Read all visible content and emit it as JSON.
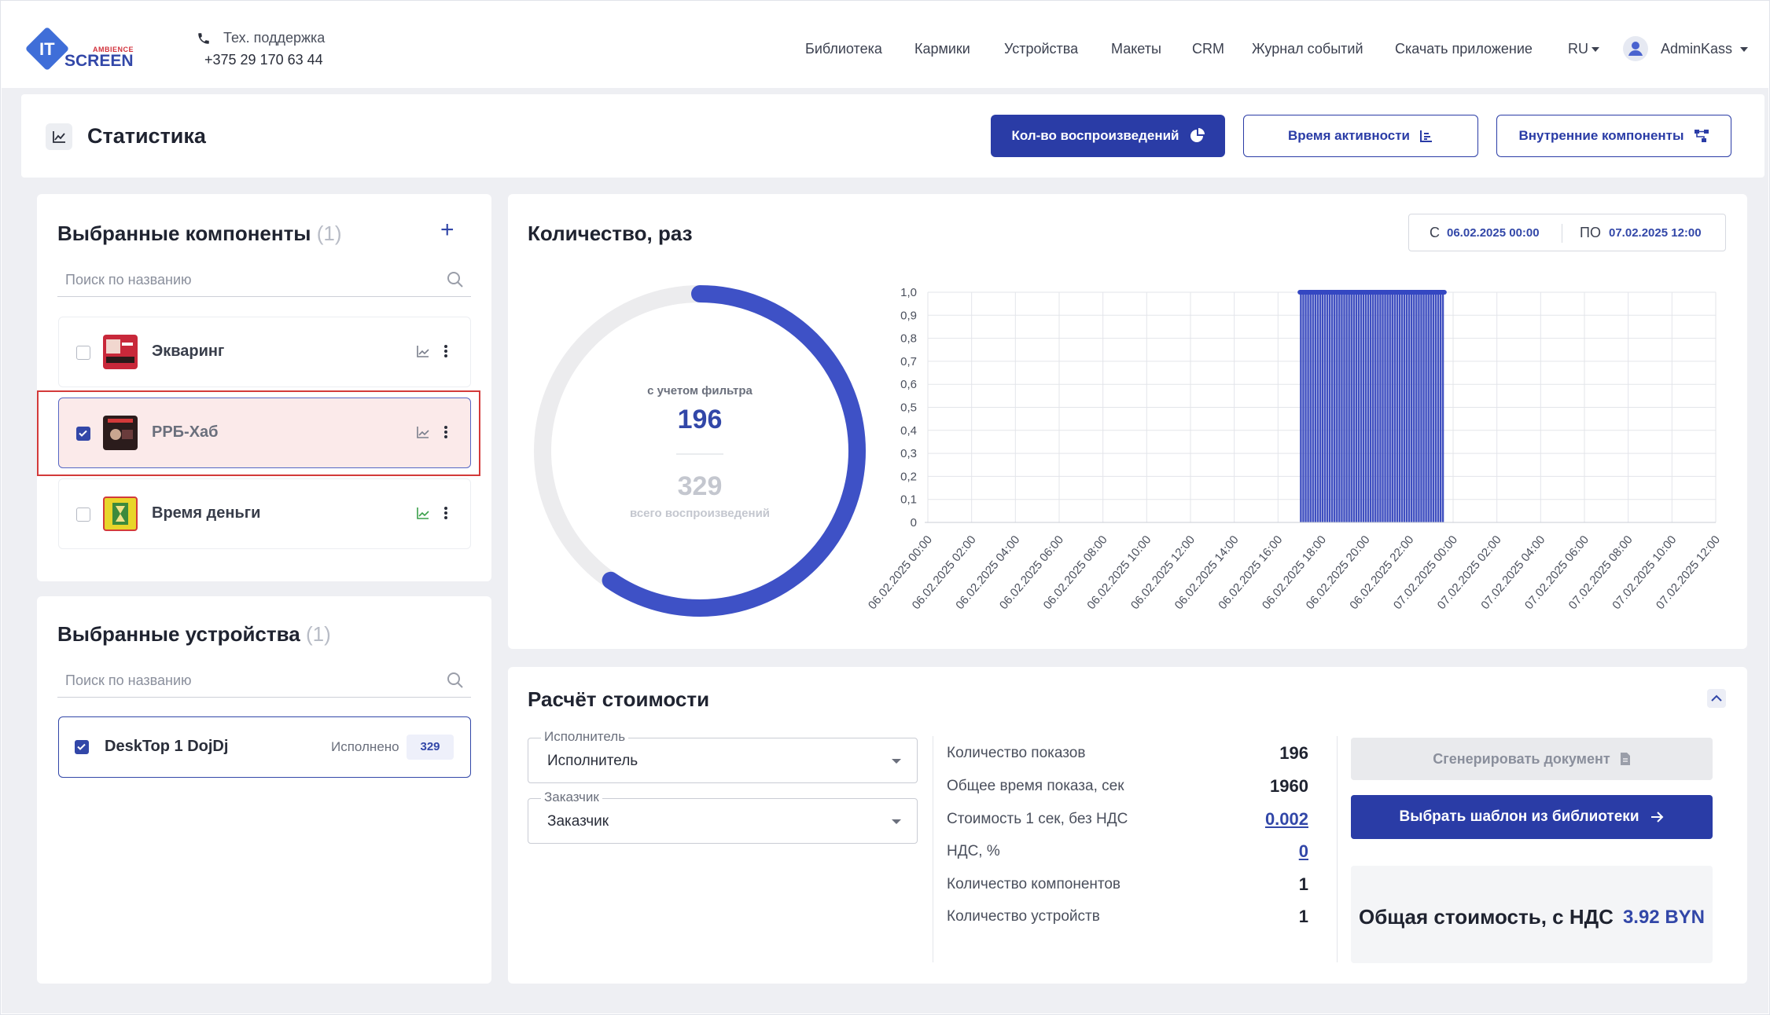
{
  "brand": {
    "logo_it": "IT",
    "logo_ambience": "AMBIENCE",
    "logo_screen": "SCREEN"
  },
  "support": {
    "label": "Тех. поддержка",
    "phone": "+375 29 170 63 44"
  },
  "nav": {
    "items": [
      "Библиотека",
      "Кармики",
      "Устройства",
      "Макеты",
      "CRM",
      "Журнал событий",
      "Скачать приложение"
    ],
    "lang": "RU",
    "user": "AdminKass"
  },
  "header": {
    "title": "Статистика",
    "buttons": {
      "plays": "Кол-во воспроизведений",
      "activity": "Время активности",
      "internal": "Внутренние компоненты"
    }
  },
  "components": {
    "title": "Выбранные компоненты",
    "count": "(1)",
    "search_placeholder": "Поиск по названию",
    "items": [
      {
        "name": "Экваринг",
        "checked": false
      },
      {
        "name": "РРБ-Хаб",
        "checked": true
      },
      {
        "name": "Время деньги",
        "checked": false
      }
    ]
  },
  "devices": {
    "title": "Выбранные устройства",
    "count": "(1)",
    "search_placeholder": "Поиск по названию",
    "items": [
      {
        "name": "DeskTop 1 DojDj",
        "status": "Исполнено",
        "count": "329",
        "checked": true
      }
    ]
  },
  "quantity": {
    "title": "Количество, раз",
    "date_from_label": "С",
    "date_from": "06.02.2025 00:00",
    "date_to_label": "ПО",
    "date_to": "07.02.2025 12:00",
    "filtered_label": "с учетом фильтра",
    "filtered_value": "196",
    "total_value": "329",
    "total_label": "всего воспроизведений",
    "donut_fraction": 0.5957
  },
  "chart_data": {
    "type": "bar",
    "title": "",
    "xlabel": "",
    "ylabel": "",
    "ylim": [
      0,
      1
    ],
    "yticks": [
      "0",
      "0,1",
      "0,2",
      "0,3",
      "0,4",
      "0,5",
      "0,6",
      "0,7",
      "0,8",
      "0,9",
      "1,0"
    ],
    "categories": [
      "06.02.2025 00:00",
      "06.02.2025 02:00",
      "06.02.2025 04:00",
      "06.02.2025 06:00",
      "06.02.2025 08:00",
      "06.02.2025 10:00",
      "06.02.2025 12:00",
      "06.02.2025 14:00",
      "06.02.2025 16:00",
      "06.02.2025 18:00",
      "06.02.2025 20:00",
      "06.02.2025 22:00",
      "07.02.2025 00:00",
      "07.02.2025 02:00",
      "07.02.2025 04:00",
      "07.02.2025 06:00",
      "07.02.2025 08:00",
      "07.02.2025 10:00",
      "07.02.2025 12:00"
    ],
    "filled_range_hours": [
      17.0,
      23.6
    ],
    "bar_value": 1.0,
    "grid": true
  },
  "cost": {
    "title": "Расчёт стоимости",
    "performer_label": "Исполнитель",
    "performer_value": "Исполнитель",
    "customer_label": "Заказчик",
    "customer_value": "Заказчик",
    "rows": [
      {
        "label": "Количество показов",
        "value": "196",
        "link": false
      },
      {
        "label": "Общее время показа, сек",
        "value": "1960",
        "link": false
      },
      {
        "label": "Стоимость 1 сек, без НДС",
        "value": "0.002",
        "link": true
      },
      {
        "label": "НДС, %",
        "value": "0",
        "link": true
      },
      {
        "label": "Количество компонентов",
        "value": "1",
        "link": false
      },
      {
        "label": "Количество устройств",
        "value": "1",
        "link": false
      }
    ],
    "generate_label": "Сгенерировать документ",
    "template_label": "Выбрать шаблон из библиотеки",
    "total_label": "Общая стоимость, с НДС",
    "total_value": "3.92 BYN"
  },
  "colors": {
    "accent": "#2a3ca6",
    "bar": "#3f4fc0",
    "donut_track": "#ececee",
    "highlight": "#d33a3a"
  }
}
